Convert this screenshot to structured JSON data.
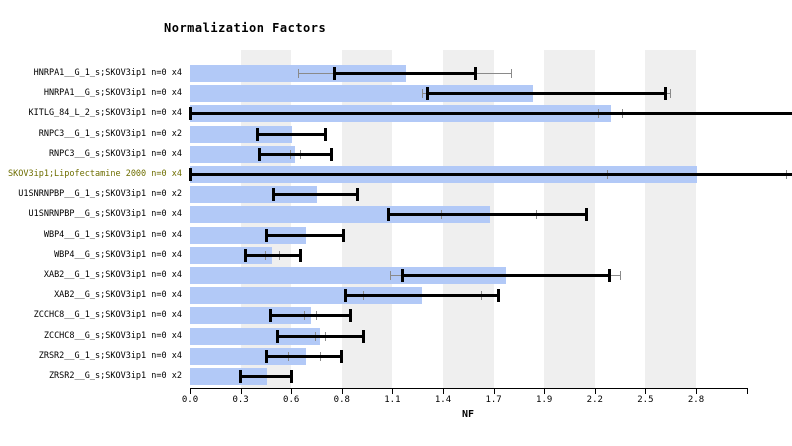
{
  "chart_data": {
    "type": "bar",
    "orientation": "horizontal",
    "title": "Normalization Factors",
    "xlabel": "NF",
    "x_tick_labels": [
      "0.0",
      "0.3",
      "0.6",
      "0.8",
      "1.1",
      "1.4",
      "1.7",
      "1.9",
      "2.2",
      "2.5",
      "2.8",
      ""
    ],
    "x_tick_step_value": 0.2833,
    "x_axis_range_values": [
      0.0,
      3.12
    ],
    "grid": "alternating-vertical-stripes",
    "legend": "none",
    "colors": {
      "bar": "#b2c9f7",
      "stripe": "#efefef",
      "error_main": "#000000",
      "error_secondary": "#8a8a8a",
      "label_default": "#000000",
      "label_highlight": "#6e6e00"
    },
    "rows": [
      {
        "label": "HNRPA1__G_1_s;SKOV3ip1 n=0 x4",
        "nf": 1.21,
        "err_black": [
          0.81,
          1.6
        ],
        "err_gray": [
          0.61,
          1.8
        ],
        "err_black_clip_hi": false,
        "highlight": false
      },
      {
        "label": "HNRPA1__G_s;SKOV3ip1 n=0 x4",
        "nf": 1.92,
        "err_black": [
          1.33,
          2.66
        ],
        "err_gray": [
          1.3,
          2.69
        ],
        "err_black_clip_hi": false,
        "highlight": false
      },
      {
        "label": "KITLG_84_L_2_s;SKOV3ip1 n=0 x4",
        "nf": 2.36,
        "err_black": [
          0.0,
          3.38
        ],
        "err_gray": [
          2.29,
          2.42
        ],
        "err_black_clip_hi": true,
        "highlight": false
      },
      {
        "label": "RNPC3__G_1_s;SKOV3ip1 n=0 x2",
        "nf": 0.57,
        "err_black": [
          0.38,
          0.76
        ],
        "err_gray": null,
        "err_black_clip_hi": false,
        "highlight": false
      },
      {
        "label": "RNPC3__G_s;SKOV3ip1 n=0 x4",
        "nf": 0.59,
        "err_black": [
          0.39,
          0.79
        ],
        "err_gray": [
          0.56,
          0.62
        ],
        "err_black_clip_hi": false,
        "highlight": false
      },
      {
        "label": "SKOV3ip1;Lipofectamine 2000 n=0 x4",
        "nf": 2.84,
        "err_black": [
          0.0,
          3.38
        ],
        "err_gray": [
          2.34,
          3.34
        ],
        "err_black_clip_hi": true,
        "highlight": true
      },
      {
        "label": "U1SNRNPBP__G_1_s;SKOV3ip1 n=0 x2",
        "nf": 0.71,
        "err_black": [
          0.47,
          0.94
        ],
        "err_gray": null,
        "err_black_clip_hi": false,
        "highlight": false
      },
      {
        "label": "U1SNRNPBP__G_s;SKOV3ip1 n=0 x4",
        "nf": 1.68,
        "err_black": [
          1.11,
          2.22
        ],
        "err_gray": [
          1.41,
          1.94
        ],
        "err_black_clip_hi": false,
        "highlight": false
      },
      {
        "label": "WBP4__G_1_s;SKOV3ip1 n=0 x4",
        "nf": 0.65,
        "err_black": [
          0.43,
          0.86
        ],
        "err_gray": null,
        "err_black_clip_hi": false,
        "highlight": false
      },
      {
        "label": "WBP4__G_s;SKOV3ip1 n=0 x4",
        "nf": 0.46,
        "err_black": [
          0.31,
          0.62
        ],
        "err_gray": [
          0.42,
          0.5
        ],
        "err_black_clip_hi": false,
        "highlight": false
      },
      {
        "label": "XAB2__G_1_s;SKOV3ip1 n=0 x4",
        "nf": 1.77,
        "err_black": [
          1.19,
          2.35
        ],
        "err_gray": [
          1.12,
          2.41
        ],
        "err_black_clip_hi": false,
        "highlight": false
      },
      {
        "label": "XAB2__G_s;SKOV3ip1 n=0 x4",
        "nf": 1.3,
        "err_black": [
          0.87,
          1.73
        ],
        "err_gray": [
          0.97,
          1.63
        ],
        "err_black_clip_hi": false,
        "highlight": false
      },
      {
        "label": "ZCCHC8__G_1_s;SKOV3ip1 n=0 x4",
        "nf": 0.68,
        "err_black": [
          0.45,
          0.9
        ],
        "err_gray": [
          0.64,
          0.71
        ],
        "err_black_clip_hi": false,
        "highlight": false
      },
      {
        "label": "ZCCHC8__G_s;SKOV3ip1 n=0 x4",
        "nf": 0.73,
        "err_black": [
          0.49,
          0.97
        ],
        "err_gray": [
          0.7,
          0.76
        ],
        "err_black_clip_hi": false,
        "highlight": false
      },
      {
        "label": "ZRSR2__G_1_s;SKOV3ip1 n=0 x4",
        "nf": 0.65,
        "err_black": [
          0.43,
          0.85
        ],
        "err_gray": [
          0.55,
          0.73
        ],
        "err_black_clip_hi": false,
        "highlight": false
      },
      {
        "label": "ZRSR2__G_s;SKOV3ip1 n=0 x2",
        "nf": 0.43,
        "err_black": [
          0.28,
          0.57
        ],
        "err_gray": null,
        "err_black_clip_hi": false,
        "highlight": false
      }
    ]
  }
}
